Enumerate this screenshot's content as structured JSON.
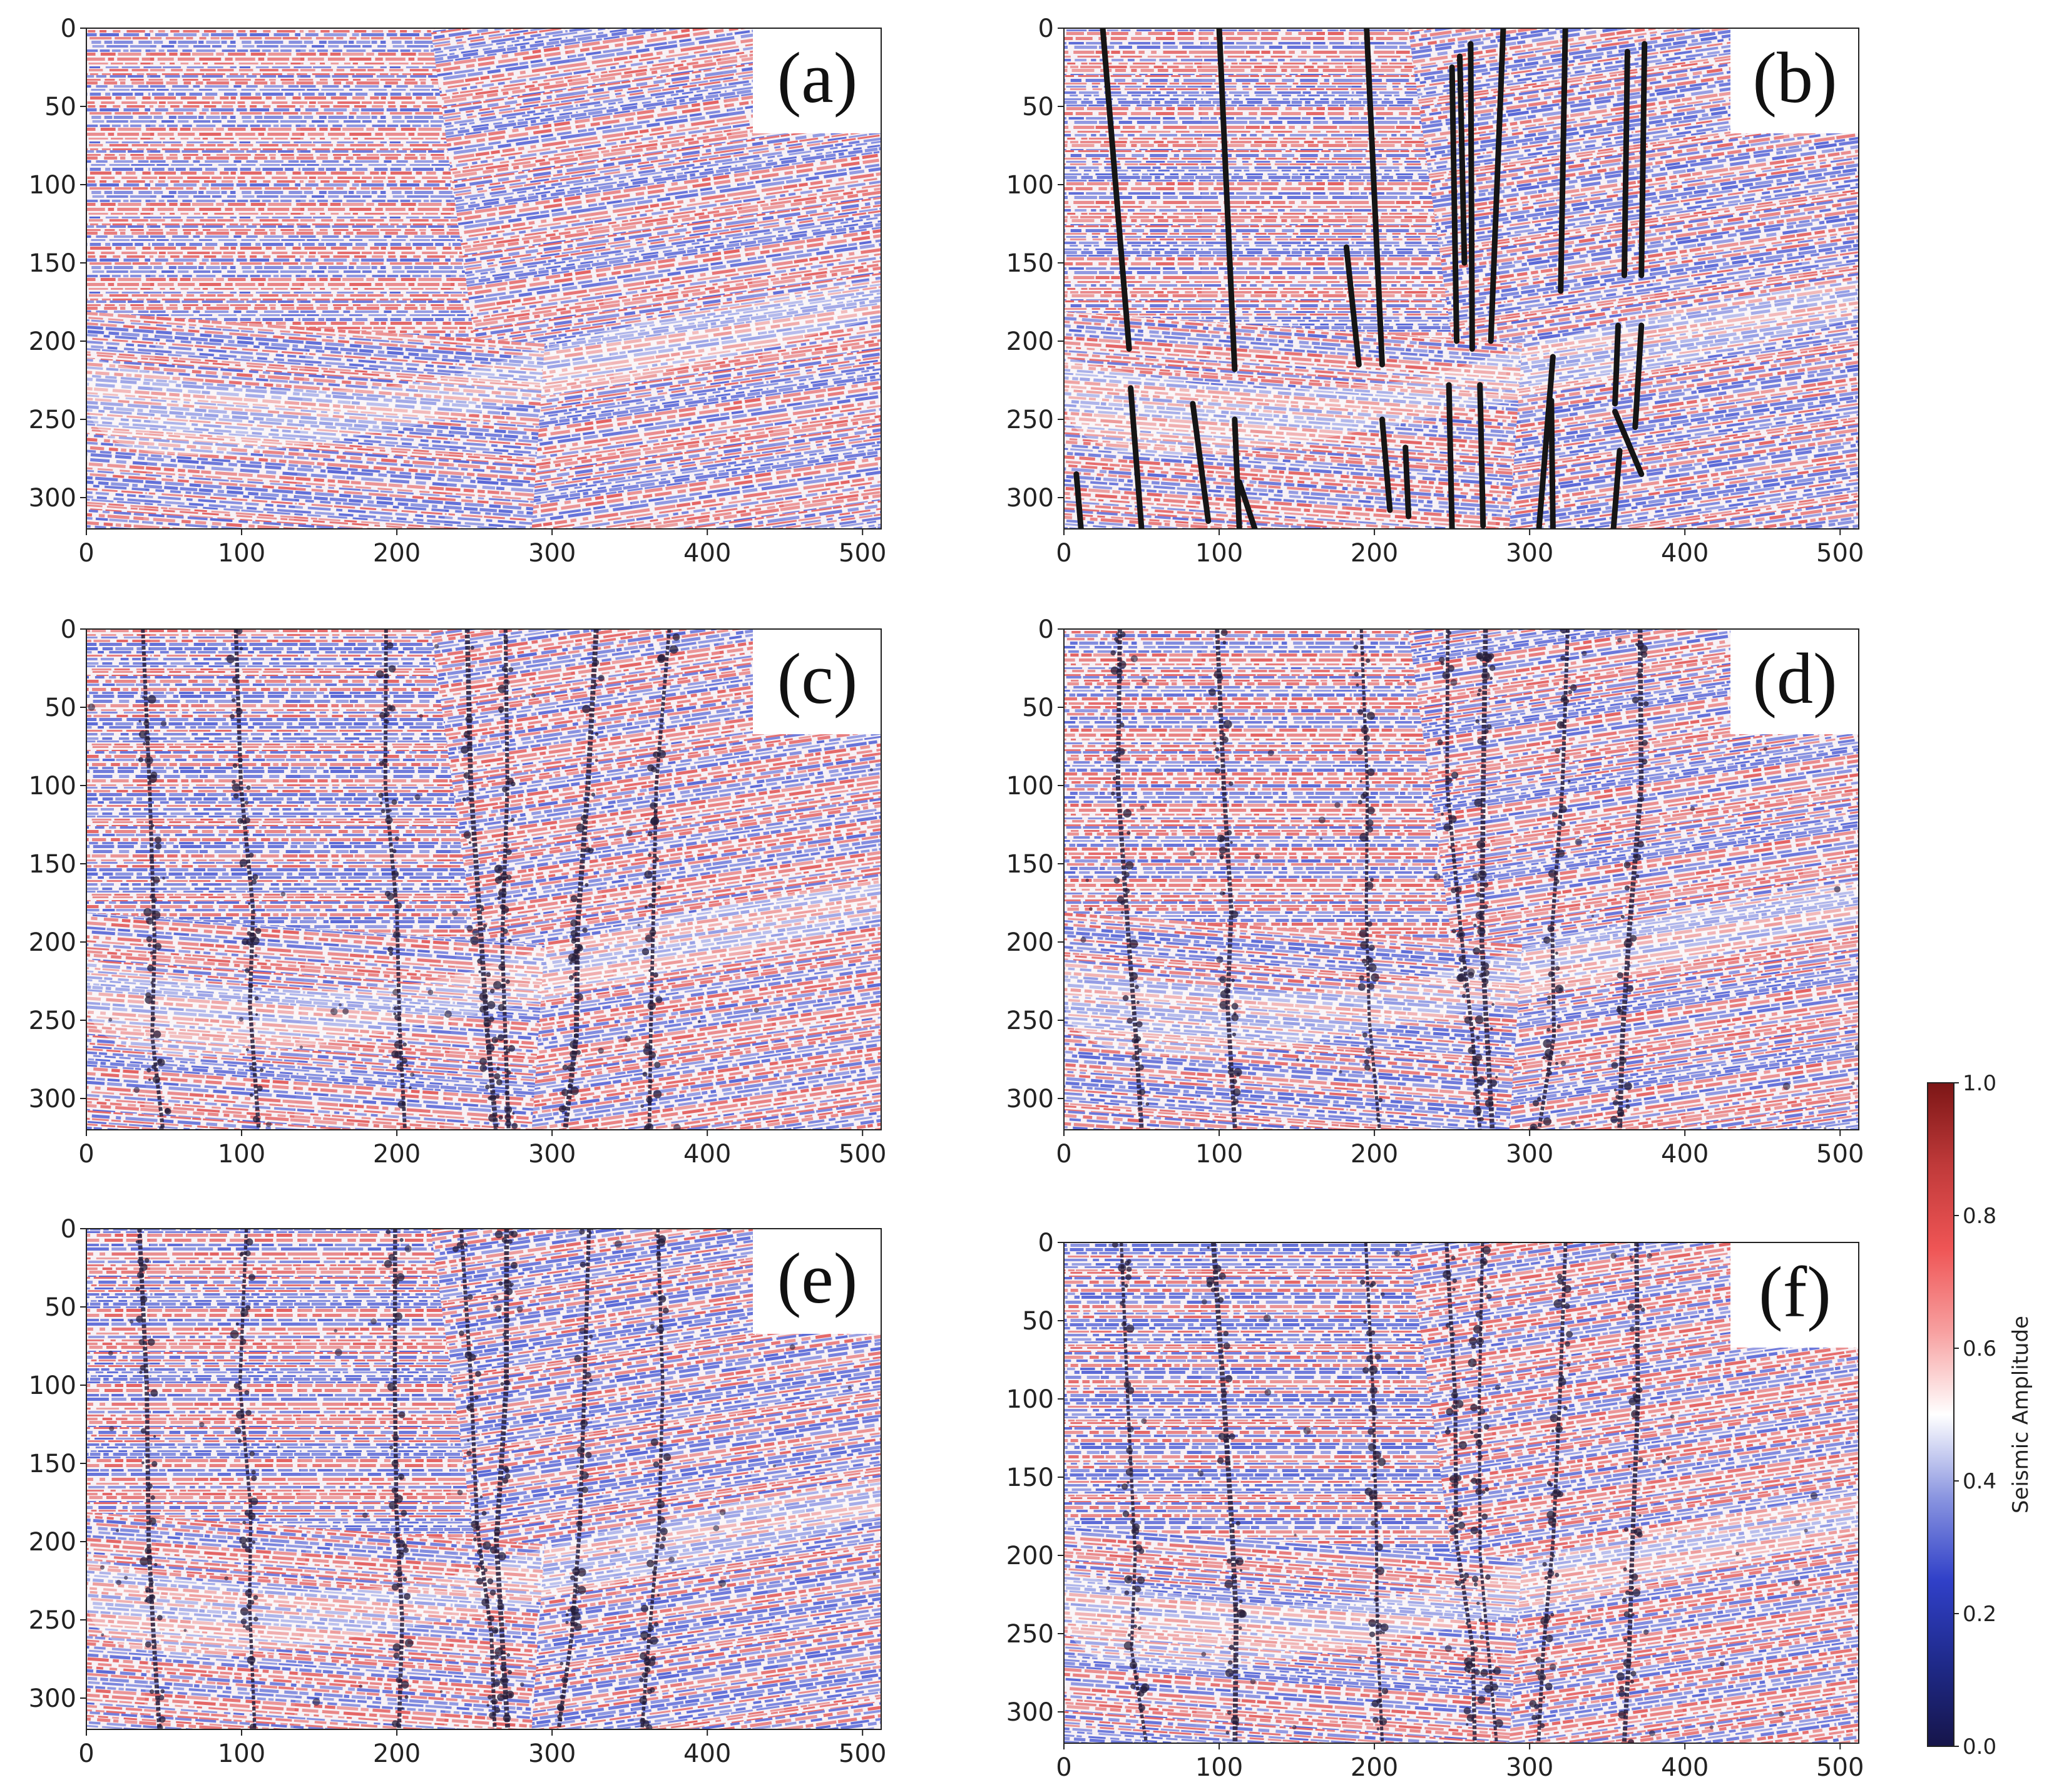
{
  "chart_data": {
    "type": "heatmap",
    "description": null,
    "panels": [
      {
        "id": "a",
        "label": "(a)",
        "xlim": [
          0,
          512
        ],
        "ylim": [
          320,
          0
        ],
        "xticks": [
          0,
          100,
          200,
          300,
          400,
          500
        ],
        "yticks": [
          0,
          50,
          100,
          150,
          200,
          250,
          300
        ],
        "overlay": "none",
        "fault_lines": []
      },
      {
        "id": "b",
        "label": "(b)",
        "xlim": [
          0,
          512
        ],
        "ylim": [
          320,
          0
        ],
        "xticks": [
          0,
          100,
          200,
          300,
          400,
          500
        ],
        "yticks": [
          0,
          50,
          100,
          150,
          200,
          250,
          300
        ],
        "overlay": "interpreted",
        "fault_lines": [
          [
            [
              25,
              0
            ],
            [
              42,
              205
            ]
          ],
          [
            [
              43,
              230
            ],
            [
              50,
              320
            ]
          ],
          [
            [
              8,
              285
            ],
            [
              11,
              320
            ]
          ],
          [
            [
              83,
              240
            ],
            [
              93,
              315
            ]
          ],
          [
            [
              100,
              0
            ],
            [
              110,
              218
            ]
          ],
          [
            [
              110,
              250
            ],
            [
              113,
              320
            ]
          ],
          [
            [
              113,
              290
            ],
            [
              123,
              320
            ]
          ],
          [
            [
              182,
              140
            ],
            [
              190,
              215
            ]
          ],
          [
            [
              195,
              0
            ],
            [
              205,
              215
            ]
          ],
          [
            [
              205,
              250
            ],
            [
              210,
              308
            ]
          ],
          [
            [
              220,
              268
            ],
            [
              222,
              312
            ]
          ],
          [
            [
              250,
              25
            ],
            [
              253,
              200
            ]
          ],
          [
            [
              255,
              18
            ],
            [
              258,
              150
            ]
          ],
          [
            [
              248,
              228
            ],
            [
              250,
              320
            ]
          ],
          [
            [
              262,
              10
            ],
            [
              263,
              205
            ]
          ],
          [
            [
              268,
              228
            ],
            [
              270,
              318
            ]
          ],
          [
            [
              283,
              0
            ],
            [
              275,
              200
            ]
          ],
          [
            [
              323,
              0
            ],
            [
              320,
              168
            ]
          ],
          [
            [
              315,
              210
            ],
            [
              306,
              320
            ]
          ],
          [
            [
              314,
              238
            ],
            [
              315,
              320
            ]
          ],
          [
            [
              363,
              15
            ],
            [
              361,
              158
            ]
          ],
          [
            [
              374,
              10
            ],
            [
              372,
              158
            ]
          ],
          [
            [
              357,
              190
            ],
            [
              355,
              240
            ]
          ],
          [
            [
              372,
              190
            ],
            [
              368,
              255
            ]
          ],
          [
            [
              355,
              245
            ],
            [
              372,
              285
            ]
          ],
          [
            [
              358,
              270
            ],
            [
              354,
              320
            ]
          ]
        ]
      },
      {
        "id": "c",
        "label": "(c)",
        "xlim": [
          0,
          512
        ],
        "ylim": [
          320,
          0
        ],
        "xticks": [
          0,
          100,
          200,
          300,
          400,
          500
        ],
        "yticks": [
          0,
          50,
          100,
          150,
          200,
          250,
          300
        ],
        "overlay": "predicted",
        "seed": 31
      },
      {
        "id": "d",
        "label": "(d)",
        "xlim": [
          0,
          512
        ],
        "ylim": [
          320,
          0
        ],
        "xticks": [
          0,
          100,
          200,
          300,
          400,
          500
        ],
        "yticks": [
          0,
          50,
          100,
          150,
          200,
          250,
          300
        ],
        "overlay": "predicted",
        "seed": 47
      },
      {
        "id": "e",
        "label": "(e)",
        "xlim": [
          0,
          512
        ],
        "ylim": [
          320,
          0
        ],
        "xticks": [
          0,
          100,
          200,
          300,
          400,
          500
        ],
        "yticks": [
          0,
          50,
          100,
          150,
          200,
          250,
          300
        ],
        "overlay": "predicted",
        "seed": 59
      },
      {
        "id": "f",
        "label": "(f)",
        "xlim": [
          0,
          512
        ],
        "ylim": [
          320,
          0
        ],
        "xticks": [
          0,
          100,
          200,
          300,
          400,
          500
        ],
        "yticks": [
          0,
          50,
          100,
          150,
          200,
          250,
          300
        ],
        "overlay": "predicted",
        "seed": 73
      }
    ],
    "predicted_fault_traces": [
      [
        [
          35,
          0
        ],
        [
          38,
          100
        ],
        [
          42,
          200
        ],
        [
          46,
          260
        ],
        [
          50,
          320
        ]
      ],
      [
        [
          100,
          0
        ],
        [
          102,
          100
        ],
        [
          105,
          180
        ],
        [
          108,
          240
        ],
        [
          110,
          320
        ]
      ],
      [
        [
          195,
          0
        ],
        [
          196,
          100
        ],
        [
          198,
          180
        ],
        [
          200,
          250
        ],
        [
          202,
          320
        ]
      ],
      [
        [
          245,
          0
        ],
        [
          250,
          100
        ],
        [
          255,
          190
        ],
        [
          262,
          260
        ],
        [
          265,
          320
        ]
      ],
      [
        [
          272,
          0
        ],
        [
          270,
          100
        ],
        [
          268,
          200
        ],
        [
          275,
          320
        ]
      ],
      [
        [
          325,
          0
        ],
        [
          322,
          100
        ],
        [
          318,
          190
        ],
        [
          312,
          260
        ],
        [
          308,
          320
        ]
      ],
      [
        [
          372,
          0
        ],
        [
          370,
          100
        ],
        [
          366,
          190
        ],
        [
          363,
          260
        ],
        [
          360,
          320
        ]
      ]
    ],
    "colorbar": {
      "label": "Seismic Amplitude",
      "ticks": [
        0.0,
        0.2,
        0.4,
        0.6,
        0.8,
        1.0
      ],
      "tick_labels": [
        "0.0",
        "0.2",
        "0.4",
        "0.6",
        "0.8",
        "1.0"
      ],
      "stops": [
        "#16154a",
        "#1f2a8a",
        "#3040c8",
        "#8a95e0",
        "#ffffff",
        "#f7a0a0",
        "#ef5555",
        "#c03a3a",
        "#7c1616"
      ]
    },
    "colors": {
      "red": "#e35a5a",
      "blue": "#5262d6",
      "white": "#f7f1f5",
      "fault": "#151515",
      "predicted_fault": "#241c3a"
    }
  }
}
